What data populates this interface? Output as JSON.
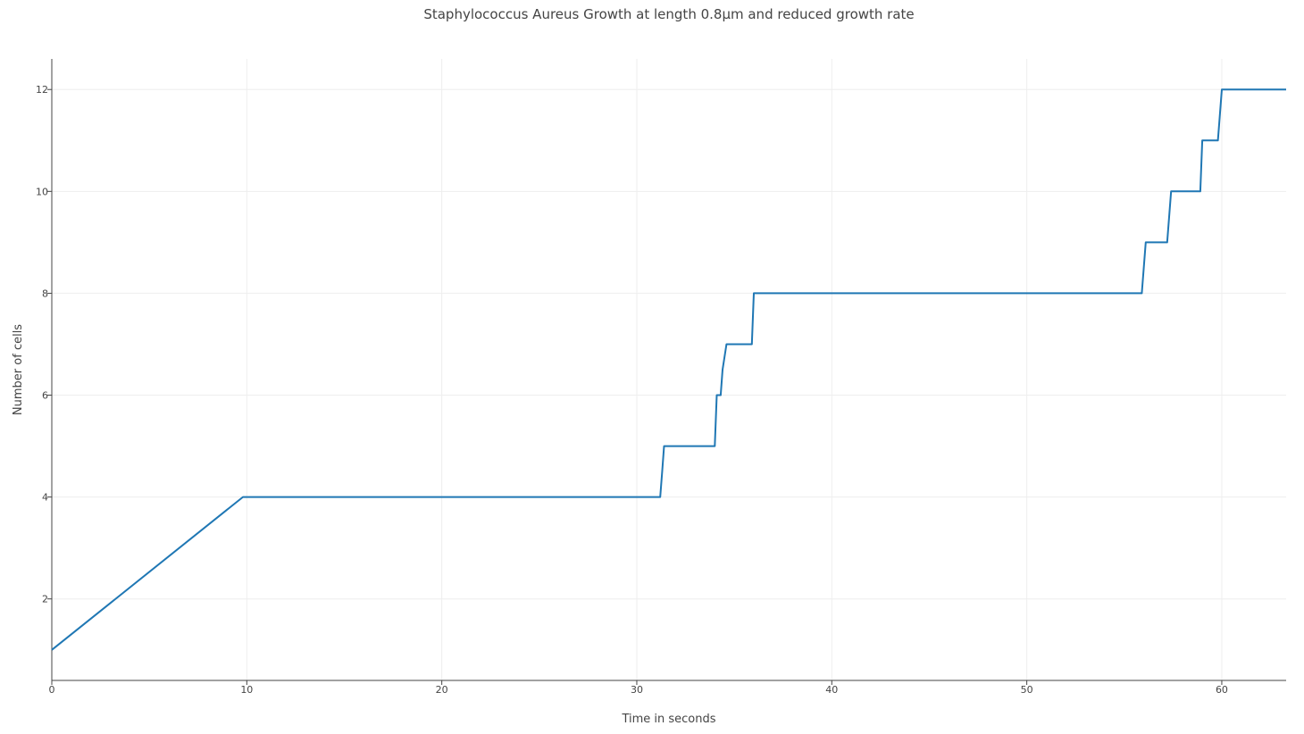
{
  "chart_data": {
    "type": "line",
    "title": "Staphylococcus Aureus Growth at length 0.8μm and reduced growth rate",
    "xlabel": "Time in seconds",
    "ylabel": "Number of cells",
    "xlim": [
      0,
      63.3
    ],
    "ylim": [
      0.4,
      12.6
    ],
    "xticks": [
      0,
      10,
      20,
      30,
      40,
      50,
      60
    ],
    "yticks": [
      2,
      4,
      6,
      8,
      10,
      12
    ],
    "grid": true,
    "legend": "none",
    "series": [
      {
        "color": "#1f77b4",
        "x": [
          0,
          9.8,
          31.2,
          31.3,
          31.4,
          34.0,
          34.1,
          34.3,
          34.4,
          34.6,
          35.9,
          35.95,
          36.0,
          55.9,
          56.0,
          56.1,
          57.2,
          57.3,
          57.4,
          58.9,
          59.0,
          59.1,
          59.8,
          59.9,
          60.0,
          63.3
        ],
        "y": [
          1,
          4,
          4,
          4.5,
          5,
          5,
          6,
          6,
          6.5,
          7,
          7,
          7.5,
          8,
          8,
          8.5,
          9,
          9,
          9.5,
          10,
          10,
          11,
          11,
          11,
          11.5,
          12,
          12
        ]
      }
    ]
  }
}
